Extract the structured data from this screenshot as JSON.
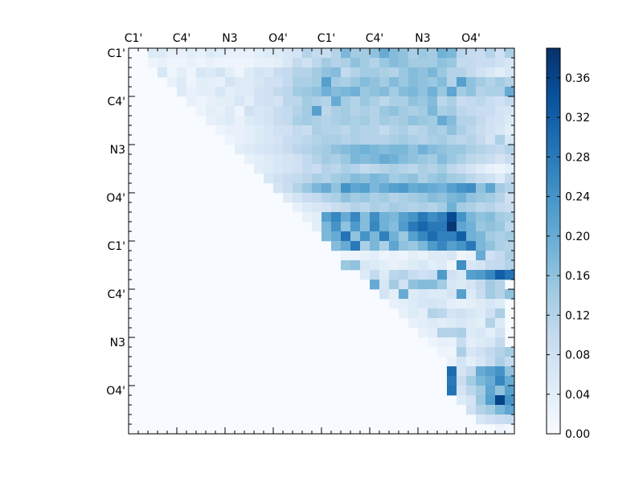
{
  "chart_data": {
    "type": "heatmap",
    "title": "",
    "xlabel": "",
    "ylabel": "",
    "n": 40,
    "matrix_shape": "upper-triangular",
    "x_tick_labels": [
      "C1'",
      "C4'",
      "N3",
      "O4'",
      "C1'",
      "C4'",
      "N3",
      "O4'"
    ],
    "x_tick_label_position": "top",
    "y_tick_labels": [
      "C1'",
      "C4'",
      "N3",
      "O4'",
      "C1'",
      "C4'",
      "N3",
      "O4'"
    ],
    "major_tick_indices": [
      0,
      5,
      10,
      15,
      20,
      25,
      30,
      35
    ],
    "colormap": "Blues",
    "colorbar": {
      "range": [
        0.0,
        0.39
      ],
      "ticks": [
        0.0,
        0.04,
        0.08,
        0.12,
        0.16,
        0.2,
        0.24,
        0.28,
        0.32,
        0.36
      ],
      "tick_labels": [
        "0.00",
        "0.04",
        "0.08",
        "0.12",
        "0.16",
        "0.20",
        "0.24",
        "0.28",
        "0.32",
        "0.36"
      ],
      "position": "right"
    },
    "colors": {
      "low": "#f7fbff",
      "mid": "#6baed6",
      "high": "#08306b"
    },
    "rows": [
      {
        "row": 0,
        "start": 1,
        "values": [
          0,
          0.05,
          0.05,
          0.03,
          0.03,
          0.04,
          0.03,
          0.05,
          0.04,
          0.03,
          0.03,
          0.03,
          0.04,
          0.05,
          0.05,
          0.06,
          0.07,
          0.12,
          0.1,
          0.09,
          0.12,
          0.18,
          0.14,
          0.14,
          0.16,
          0.2,
          0.17,
          0.16,
          0.13,
          0.15,
          0.14,
          0.19,
          0.18,
          0.11,
          0.1,
          0.09,
          0.12,
          0.08,
          0.13,
          0.06
        ]
      },
      {
        "row": 1,
        "start": 2,
        "values": [
          0.02,
          0.03,
          0.02,
          0.02,
          0.03,
          0.02,
          0.03,
          0.02,
          0.02,
          0.02,
          0.02,
          0.03,
          0.03,
          0.04,
          0.06,
          0.1,
          0.08,
          0.11,
          0.14,
          0.12,
          0.13,
          0.16,
          0.14,
          0.12,
          0.15,
          0.17,
          0.16,
          0.14,
          0.14,
          0.14,
          0.16,
          0.15,
          0.1,
          0.1,
          0.09,
          0.09,
          0.08,
          0.06,
          0.05
        ]
      },
      {
        "row": 2,
        "start": 3,
        "values": [
          0.06,
          0.02,
          0.04,
          0.02,
          0.06,
          0.05,
          0.07,
          0.04,
          0.02,
          0.05,
          0.07,
          0.06,
          0.09,
          0.1,
          0.12,
          0.12,
          0.14,
          0.16,
          0.17,
          0.1,
          0.12,
          0.14,
          0.14,
          0.13,
          0.12,
          0.15,
          0.17,
          0.16,
          0.18,
          0.15,
          0.12,
          0.12,
          0.1,
          0.08,
          0.06,
          0.04,
          0.06,
          0.02
        ]
      },
      {
        "row": 3,
        "start": 4,
        "values": [
          0.03,
          0.05,
          0.02,
          0.04,
          0.04,
          0.03,
          0.07,
          0.05,
          0.05,
          0.06,
          0.08,
          0.08,
          0.1,
          0.13,
          0.13,
          0.14,
          0.22,
          0.14,
          0.13,
          0.15,
          0.17,
          0.16,
          0.14,
          0.17,
          0.15,
          0.17,
          0.16,
          0.15,
          0.17,
          0.12,
          0.22,
          0.16,
          0.14,
          0.12,
          0.14,
          0.12,
          0.18
        ]
      },
      {
        "row": 4,
        "start": 5,
        "values": [
          0.05,
          0.03,
          0.04,
          0.04,
          0.06,
          0.04,
          0.05,
          0.05,
          0.07,
          0.08,
          0.1,
          0.11,
          0.14,
          0.15,
          0.16,
          0.19,
          0.17,
          0.18,
          0.19,
          0.15,
          0.16,
          0.17,
          0.14,
          0.17,
          0.18,
          0.16,
          0.19,
          0.15,
          0.21,
          0.14,
          0.16,
          0.12,
          0.13,
          0.13,
          0.2
        ]
      },
      {
        "row": 5,
        "start": 6,
        "values": [
          0.03,
          0.02,
          0.03,
          0.04,
          0.04,
          0.06,
          0.04,
          0.07,
          0.08,
          0.07,
          0.11,
          0.11,
          0.14,
          0.13,
          0.12,
          0.2,
          0.14,
          0.12,
          0.15,
          0.13,
          0.11,
          0.13,
          0.13,
          0.16,
          0.15,
          0.17,
          0.11,
          0.13,
          0.09,
          0.1,
          0.11,
          0.09,
          0.08,
          0.1
        ]
      },
      {
        "row": 6,
        "start": 7,
        "values": [
          0.02,
          0.04,
          0.03,
          0.05,
          0.02,
          0.08,
          0.06,
          0.07,
          0.09,
          0.1,
          0.12,
          0.14,
          0.22,
          0.11,
          0.13,
          0.14,
          0.12,
          0.13,
          0.12,
          0.15,
          0.16,
          0.14,
          0.13,
          0.14,
          0.18,
          0.13,
          0.14,
          0.11,
          0.1,
          0.09,
          0.09,
          0.07,
          0.06
        ]
      },
      {
        "row": 7,
        "start": 8,
        "values": [
          0.03,
          0.04,
          0.05,
          0.03,
          0.05,
          0.06,
          0.07,
          0.09,
          0.1,
          0.13,
          0.14,
          0.13,
          0.12,
          0.13,
          0.14,
          0.13,
          0.14,
          0.12,
          0.14,
          0.13,
          0.14,
          0.16,
          0.15,
          0.14,
          0.2,
          0.17,
          0.12,
          0.12,
          0.1,
          0.08,
          0.07,
          0.05
        ]
      },
      {
        "row": 8,
        "start": 9,
        "values": [
          0.02,
          0.03,
          0.03,
          0.04,
          0.05,
          0.06,
          0.08,
          0.08,
          0.1,
          0.09,
          0.13,
          0.12,
          0.12,
          0.11,
          0.13,
          0.12,
          0.12,
          0.1,
          0.12,
          0.13,
          0.11,
          0.12,
          0.14,
          0.13,
          0.16,
          0.13,
          0.11,
          0.09,
          0.08,
          0.06,
          0.04
        ]
      },
      {
        "row": 9,
        "start": 10,
        "values": [
          0.02,
          0.03,
          0.04,
          0.05,
          0.06,
          0.07,
          0.09,
          0.1,
          0.11,
          0.12,
          0.13,
          0.13,
          0.12,
          0.13,
          0.12,
          0.12,
          0.12,
          0.13,
          0.14,
          0.13,
          0.12,
          0.13,
          0.14,
          0.12,
          0.11,
          0.12,
          0.1,
          0.07,
          0.13,
          0.06
        ]
      },
      {
        "row": 10,
        "start": 11,
        "values": [
          0.04,
          0.05,
          0.06,
          0.07,
          0.08,
          0.09,
          0.11,
          0.12,
          0.13,
          0.14,
          0.16,
          0.17,
          0.18,
          0.19,
          0.18,
          0.17,
          0.18,
          0.18,
          0.16,
          0.19,
          0.17,
          0.16,
          0.15,
          0.15,
          0.13,
          0.12,
          0.11,
          0.1,
          0.12
        ]
      },
      {
        "row": 11,
        "start": 12,
        "values": [
          0.03,
          0.04,
          0.05,
          0.06,
          0.07,
          0.08,
          0.1,
          0.12,
          0.14,
          0.13,
          0.15,
          0.18,
          0.17,
          0.18,
          0.2,
          0.19,
          0.17,
          0.16,
          0.15,
          0.14,
          0.17,
          0.15,
          0.13,
          0.11,
          0.1,
          0.09,
          0.07,
          0.09
        ]
      },
      {
        "row": 12,
        "start": 13,
        "values": [
          0.04,
          0.05,
          0.06,
          0.07,
          0.08,
          0.1,
          0.09,
          0.12,
          0.11,
          0.13,
          0.12,
          0.1,
          0.11,
          0.12,
          0.13,
          0.12,
          0.11,
          0.13,
          0.12,
          0.14,
          0.11,
          0.09,
          0.07,
          0.05,
          0.03,
          0.02,
          0.04
        ]
      },
      {
        "row": 13,
        "start": 14,
        "values": [
          0.06,
          0.08,
          0.09,
          0.1,
          0.11,
          0.13,
          0.12,
          0.14,
          0.15,
          0.17,
          0.16,
          0.18,
          0.17,
          0.14,
          0.15,
          0.16,
          0.13,
          0.15,
          0.16,
          0.14,
          0.13,
          0.11,
          0.09,
          0.08,
          0.05,
          0.1
        ]
      },
      {
        "row": 14,
        "start": 15,
        "values": [
          0.07,
          0.09,
          0.12,
          0.15,
          0.18,
          0.2,
          0.16,
          0.24,
          0.21,
          0.22,
          0.18,
          0.2,
          0.22,
          0.23,
          0.2,
          0.21,
          0.2,
          0.19,
          0.22,
          0.24,
          0.25,
          0.16,
          0.21,
          0.14,
          0.12
        ]
      },
      {
        "row": 15,
        "start": 16,
        "values": [
          0.05,
          0.07,
          0.09,
          0.1,
          0.12,
          0.13,
          0.16,
          0.14,
          0.15,
          0.13,
          0.14,
          0.12,
          0.13,
          0.14,
          0.15,
          0.17,
          0.16,
          0.18,
          0.19,
          0.16,
          0.15,
          0.14,
          0.12,
          0.08
        ]
      },
      {
        "row": 16,
        "start": 17,
        "values": [
          0.03,
          0.05,
          0.06,
          0.07,
          0.09,
          0.1,
          0.12,
          0.11,
          0.13,
          0.12,
          0.14,
          0.13,
          0.12,
          0.13,
          0.12,
          0.14,
          0.19,
          0.14,
          0.13,
          0.11,
          0.12,
          0.1,
          0.09
        ]
      },
      {
        "row": 17,
        "start": 18,
        "values": [
          0.03,
          0.04,
          0.22,
          0.26,
          0.2,
          0.26,
          0.17,
          0.25,
          0.19,
          0.18,
          0.22,
          0.24,
          0.28,
          0.25,
          0.27,
          0.35,
          0.24,
          0.18,
          0.16,
          0.17,
          0.14,
          0.13
        ]
      },
      {
        "row": 18,
        "start": 19,
        "values": [
          0.04,
          0.18,
          0.24,
          0.16,
          0.23,
          0.17,
          0.26,
          0.19,
          0.17,
          0.23,
          0.28,
          0.31,
          0.28,
          0.28,
          0.38,
          0.21,
          0.19,
          0.15,
          0.16,
          0.15,
          0.11
        ]
      },
      {
        "row": 19,
        "start": 20,
        "values": [
          0.18,
          0.2,
          0.29,
          0.16,
          0.24,
          0.18,
          0.27,
          0.19,
          0.15,
          0.22,
          0.26,
          0.3,
          0.27,
          0.27,
          0.32,
          0.19,
          0.18,
          0.14,
          0.13,
          0.14,
          0.11
        ]
      },
      {
        "row": 20,
        "start": 21,
        "values": [
          0.17,
          0.2,
          0.28,
          0.13,
          0.18,
          0.13,
          0.21,
          0.16,
          0.15,
          0.18,
          0.23,
          0.26,
          0.22,
          0.24,
          0.28,
          0.18,
          0.16,
          0.13,
          0.12,
          0.14,
          0.1
        ]
      },
      {
        "row": 21,
        "start": 22,
        "values": [
          0.02,
          0.02,
          0.03,
          0.04,
          0.02,
          0.03,
          0.02,
          0.04,
          0.03,
          0.05,
          0.05,
          0.06,
          0.02,
          0.03,
          0.2,
          0.08,
          0.1,
          0.13,
          0.13,
          0.12
        ]
      },
      {
        "row": 22,
        "start": 22,
        "values": [
          0.15,
          0.16,
          0.06,
          0.05,
          0.04,
          0.03,
          0.04,
          0.05,
          0.06,
          0.04,
          0.05,
          0.02,
          0.25,
          0.06,
          0.07,
          0.1,
          0.1,
          0.12
        ]
      },
      {
        "row": 23,
        "start": 24,
        "values": [
          0.05,
          0.1,
          0.05,
          0.11,
          0.12,
          0.09,
          0.08,
          0.09,
          0.23,
          0.08,
          0.06,
          0.22,
          0.23,
          0.26,
          0.32,
          0.29
        ]
      },
      {
        "row": 24,
        "start": 25,
        "values": [
          0.2,
          0.06,
          0.14,
          0.08,
          0.16,
          0.17,
          0.17,
          0.14,
          0.06,
          0.05,
          0.07,
          0.1,
          0.14,
          0.12
        ]
      },
      {
        "row": 25,
        "start": 26,
        "values": [
          0.07,
          0.04,
          0.2,
          0.05,
          0.06,
          0.05,
          0.05,
          0.07,
          0.22,
          0.05,
          0.09,
          0.14,
          0.12,
          0.16
        ]
      },
      {
        "row": 26,
        "start": 27,
        "values": [
          0.03,
          0.04,
          0.05,
          0.06,
          0.07,
          0.06,
          0.04,
          0.03,
          0.04,
          0.05,
          0.06,
          0.05
        ]
      },
      {
        "row": 27,
        "start": 28,
        "values": [
          0.03,
          0.05,
          0.04,
          0.12,
          0.11,
          0.07,
          0.08,
          0.06,
          0.05,
          0.08,
          0.13
        ]
      },
      {
        "row": 28,
        "start": 29,
        "values": [
          0.03,
          0.04,
          0.05,
          0.04,
          0.05,
          0.06,
          0.05,
          0.04,
          0.12,
          0.05
        ]
      },
      {
        "row": 29,
        "start": 30,
        "values": [
          0.03,
          0.04,
          0.12,
          0.12,
          0.13,
          0.05,
          0.06,
          0.04,
          0.07
        ]
      },
      {
        "row": 30,
        "start": 31,
        "values": [
          0.02,
          0.03,
          0.03,
          0.09,
          0.04,
          0.05,
          0.06,
          0.1
        ]
      },
      {
        "row": 31,
        "start": 32,
        "values": [
          0.02,
          0.02,
          0.13,
          0.06,
          0.08,
          0.1,
          0.12,
          0.14
        ]
      },
      {
        "row": 32,
        "start": 33,
        "values": [
          0.03,
          0.07,
          0.04,
          0.06,
          0.09,
          0.13,
          0.1
        ]
      },
      {
        "row": 33,
        "start": 33,
        "values": [
          0.3,
          0.07,
          0.1,
          0.2,
          0.22,
          0.24,
          0.16
        ]
      },
      {
        "row": 34,
        "start": 33,
        "values": [
          0.28,
          0.09,
          0.14,
          0.18,
          0.2,
          0.26,
          0.2
        ]
      },
      {
        "row": 35,
        "start": 33,
        "values": [
          0.29,
          0.07,
          0.11,
          0.14,
          0.21,
          0.16,
          0.22
        ]
      },
      {
        "row": 36,
        "start": 34,
        "values": [
          0.05,
          0.07,
          0.15,
          0.22,
          0.36,
          0.24
        ]
      },
      {
        "row": 37,
        "start": 35,
        "values": [
          0.08,
          0.12,
          0.14,
          0.18,
          0.21
        ]
      },
      {
        "row": 38,
        "start": 36,
        "values": [
          0.06,
          0.08,
          0.09,
          0.1
        ]
      },
      {
        "row": 39,
        "start": 38,
        "values": [
          0.02,
          0.01
        ]
      }
    ]
  }
}
